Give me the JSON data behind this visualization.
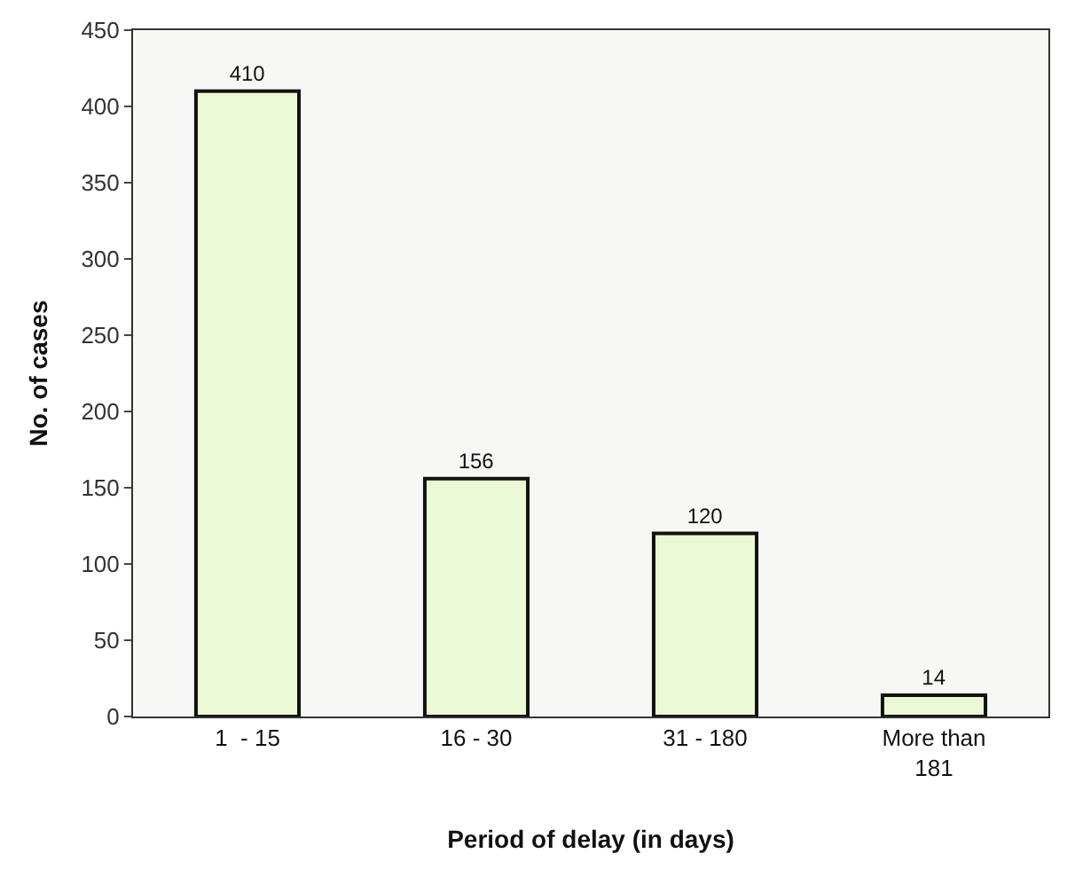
{
  "chart_data": {
    "type": "bar",
    "xlabel": "Period of delay (in days)",
    "ylabel": "No. of cases",
    "categories": [
      "1  - 15",
      "16 - 30",
      "31 - 180",
      "More than 181"
    ],
    "values": [
      410,
      156,
      120,
      14
    ],
    "color": "#eaf8d6",
    "ylim": [
      0,
      450
    ],
    "yticks": [
      0,
      50,
      100,
      150,
      200,
      250,
      300,
      350,
      400,
      450
    ],
    "grid": false,
    "legend": false,
    "data_labels": true
  }
}
